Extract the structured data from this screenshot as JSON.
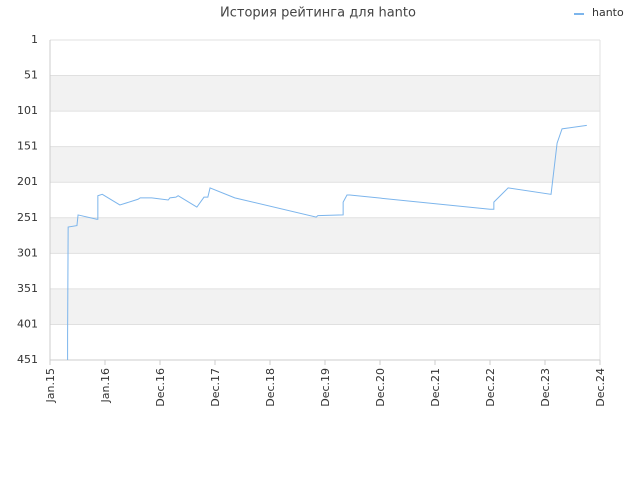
{
  "chart_data": {
    "type": "line",
    "title": "История рейтинга для hanto",
    "series": [
      {
        "name": "hanto",
        "color": "#7cb5ec",
        "x": [
          0.32,
          0.32,
          0.33,
          0.49,
          0.51,
          0.85,
          0.87,
          0.87,
          0.95,
          1.27,
          1.6,
          1.64,
          1.85,
          2.15,
          2.18,
          2.29,
          2.33,
          2.67,
          2.8,
          2.87,
          2.91,
          3.36,
          4.84,
          4.87,
          5.33,
          5.33,
          5.4,
          5.45,
          8.0,
          8.07,
          8.07,
          8.33,
          9.11,
          9.22,
          9.31,
          9.76
        ],
        "values": [
          451,
          416,
          264,
          262,
          247,
          253,
          253,
          220,
          218,
          233,
          225,
          223,
          223,
          226,
          223,
          222,
          220,
          236,
          222,
          222,
          209,
          223,
          250,
          248,
          247,
          229,
          219,
          219,
          239,
          239,
          229,
          209,
          218,
          146,
          126,
          121
        ]
      }
    ],
    "xlim": [
      0,
      10
    ],
    "xticks": [
      {
        "value": 0,
        "label": "Jan.15"
      },
      {
        "value": 1,
        "label": "Jan.16"
      },
      {
        "value": 2,
        "label": "Dec.16"
      },
      {
        "value": 3,
        "label": "Dec.17"
      },
      {
        "value": 4,
        "label": "Dec.18"
      },
      {
        "value": 5,
        "label": "Dec.19"
      },
      {
        "value": 6,
        "label": "Dec.20"
      },
      {
        "value": 7,
        "label": "Dec.21"
      },
      {
        "value": 8,
        "label": "Dec.22"
      },
      {
        "value": 9,
        "label": "Dec.23"
      },
      {
        "value": 10,
        "label": "Dec.24"
      }
    ],
    "ylim": [
      451,
      1
    ],
    "yticks": [
      1,
      51,
      101,
      151,
      201,
      251,
      301,
      351,
      401,
      451
    ],
    "grid": true,
    "banded": true,
    "legend": "top-right"
  }
}
